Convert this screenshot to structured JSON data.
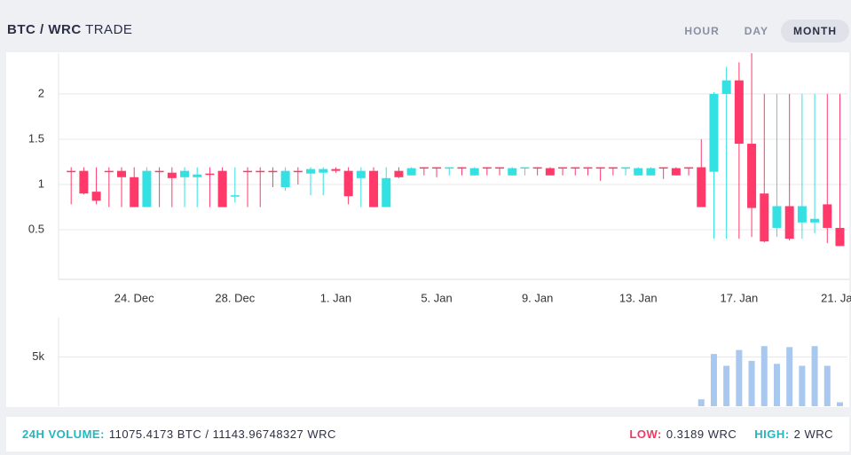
{
  "header": {
    "pair": "BTC / WRC",
    "label": "TRADE",
    "tabs": [
      "HOUR",
      "DAY",
      "MONTH"
    ],
    "active_tab": 2
  },
  "chart_data": [
    {
      "type": "candlestick",
      "up_color": "#33e1e3",
      "down_color": "#ff3a6a",
      "grid": true,
      "x": [
        21.5,
        22,
        22.5,
        23,
        23.5,
        24,
        24.5,
        25,
        25.5,
        26,
        26.5,
        27,
        27.5,
        28,
        28.5,
        29,
        29.5,
        30,
        30.5,
        31,
        31.5,
        32,
        32.5,
        33,
        33.5,
        34,
        34.5,
        35,
        35.5,
        36,
        36.5,
        37,
        37.5,
        38,
        38.5,
        39,
        39.5,
        40,
        40.5,
        41,
        41.5,
        42,
        42.5,
        43,
        43.5,
        44,
        44.5,
        45,
        45.5,
        46,
        46.5,
        47,
        47.5,
        48,
        48.5,
        49,
        49.5,
        50,
        50.5,
        51,
        51.5,
        52
      ],
      "open": [
        1.15,
        1.15,
        0.92,
        1.15,
        1.15,
        1.08,
        0.75,
        1.15,
        1.13,
        1.08,
        1.08,
        1.12,
        1.15,
        0.87,
        1.15,
        1.15,
        1.15,
        0.97,
        1.15,
        1.12,
        1.13,
        1.17,
        1.15,
        1.07,
        1.15,
        0.75,
        1.15,
        1.1,
        1.19,
        1.19,
        1.18,
        1.19,
        1.1,
        1.19,
        1.19,
        1.1,
        1.18,
        1.19,
        1.18,
        1.19,
        1.19,
        1.19,
        1.19,
        1.19,
        1.18,
        1.1,
        1.1,
        1.19,
        1.18,
        1.19,
        1.19,
        1.14,
        2.0,
        2.15,
        1.45,
        0.9,
        0.52,
        0.76,
        0.58,
        0.58,
        0.78,
        0.52
      ],
      "high": [
        1.19,
        1.19,
        1.19,
        1.19,
        1.19,
        1.19,
        1.19,
        1.19,
        1.19,
        1.19,
        1.19,
        1.19,
        1.19,
        1.19,
        1.19,
        1.19,
        1.19,
        1.19,
        1.19,
        1.19,
        1.19,
        1.19,
        1.19,
        1.19,
        1.19,
        1.19,
        1.19,
        1.19,
        1.19,
        1.19,
        1.19,
        1.19,
        1.19,
        1.19,
        1.19,
        1.19,
        1.19,
        1.19,
        1.19,
        1.19,
        1.19,
        1.19,
        1.19,
        1.19,
        1.19,
        1.19,
        1.19,
        1.19,
        1.19,
        1.19,
        1.5,
        2.02,
        2.3,
        2.35,
        2.45,
        2.0,
        2.0,
        2.0,
        2.0,
        2.0,
        2.0,
        2.0
      ],
      "low": [
        0.78,
        0.89,
        0.78,
        0.75,
        0.75,
        0.75,
        0.75,
        0.75,
        0.75,
        0.75,
        0.75,
        0.75,
        0.75,
        0.8,
        0.75,
        0.75,
        0.97,
        0.93,
        1.0,
        0.88,
        0.88,
        1.13,
        0.78,
        0.75,
        0.75,
        0.75,
        1.07,
        1.1,
        1.1,
        1.08,
        1.1,
        1.1,
        1.1,
        1.1,
        1.1,
        1.1,
        1.1,
        1.1,
        1.1,
        1.1,
        1.1,
        1.1,
        1.04,
        1.1,
        1.1,
        1.1,
        1.1,
        1.06,
        1.1,
        1.1,
        0.75,
        0.4,
        0.4,
        0.4,
        0.42,
        0.36,
        0.42,
        0.38,
        0.4,
        0.46,
        0.35,
        0.32
      ],
      "close": [
        1.15,
        0.9,
        0.82,
        1.14,
        1.08,
        0.75,
        1.15,
        1.14,
        1.07,
        1.15,
        1.11,
        1.11,
        0.75,
        0.88,
        1.14,
        1.14,
        1.14,
        1.15,
        1.14,
        1.17,
        1.17,
        1.15,
        0.87,
        1.15,
        0.75,
        1.07,
        1.08,
        1.18,
        1.18,
        1.18,
        1.19,
        1.18,
        1.18,
        1.18,
        1.18,
        1.18,
        1.19,
        1.18,
        1.1,
        1.18,
        1.18,
        1.18,
        1.18,
        1.18,
        1.19,
        1.18,
        1.18,
        1.18,
        1.1,
        1.18,
        0.75,
        2.0,
        2.15,
        1.45,
        0.74,
        0.37,
        0.76,
        0.4,
        0.76,
        0.62,
        0.52,
        0.32
      ],
      "xlim": [
        21,
        52.3
      ],
      "xticks": [
        {
          "value": 24,
          "label": "24. Dec"
        },
        {
          "value": 28,
          "label": "28. Dec"
        },
        {
          "value": 32,
          "label": "1. Jan"
        },
        {
          "value": 36,
          "label": "5. Jan"
        },
        {
          "value": 40,
          "label": "9. Jan"
        },
        {
          "value": 44,
          "label": "13. Jan"
        },
        {
          "value": 48,
          "label": "17. Jan"
        },
        {
          "value": 52,
          "label": "21. Jan"
        }
      ],
      "ylim": [
        0,
        2.45
      ],
      "yticks": [
        0.5,
        1,
        1.5,
        2
      ]
    },
    {
      "type": "bar",
      "color": "#a8c8ef",
      "grid": true,
      "x": [
        21.5,
        22,
        22.5,
        23,
        23.5,
        24,
        24.5,
        25,
        25.5,
        26,
        26.5,
        27,
        27.5,
        28,
        28.5,
        29,
        29.5,
        30,
        30.5,
        31,
        31.5,
        32,
        32.5,
        33,
        33.5,
        34,
        34.5,
        35,
        35.5,
        36,
        36.5,
        37,
        37.5,
        38,
        38.5,
        39,
        39.5,
        40,
        40.5,
        41,
        41.5,
        42,
        42.5,
        43,
        43.5,
        44,
        44.5,
        45,
        45.5,
        46,
        46.5,
        47,
        47.5,
        48,
        48.5,
        49,
        49.5,
        50,
        50.5,
        51,
        51.5,
        52
      ],
      "values": [
        0,
        0,
        0,
        0,
        0,
        0,
        0,
        0,
        0,
        0,
        0,
        0,
        0,
        0,
        0,
        0,
        0,
        0,
        0,
        0,
        0,
        0,
        0,
        0,
        0,
        0,
        0,
        0,
        0,
        0,
        0,
        0,
        0,
        0,
        0,
        0,
        0,
        0,
        0,
        0,
        0,
        0,
        0,
        0,
        0,
        0,
        0,
        0,
        0,
        0,
        700,
        5300,
        4100,
        5700,
        4600,
        6100,
        4300,
        6000,
        4100,
        6100,
        4100,
        400
      ],
      "xlim": [
        21,
        52.3
      ],
      "ylim": [
        0,
        9000
      ],
      "yticks": [
        {
          "value": 5000,
          "label": "5k"
        }
      ]
    }
  ],
  "footer": {
    "volume_label": "24H VOLUME:",
    "volume_value": "11075.4173 BTC / 11143.96748327 WRC",
    "low_label": "LOW:",
    "low_value": "0.3189 WRC",
    "high_label": "HIGH:",
    "high_value": "2 WRC"
  }
}
